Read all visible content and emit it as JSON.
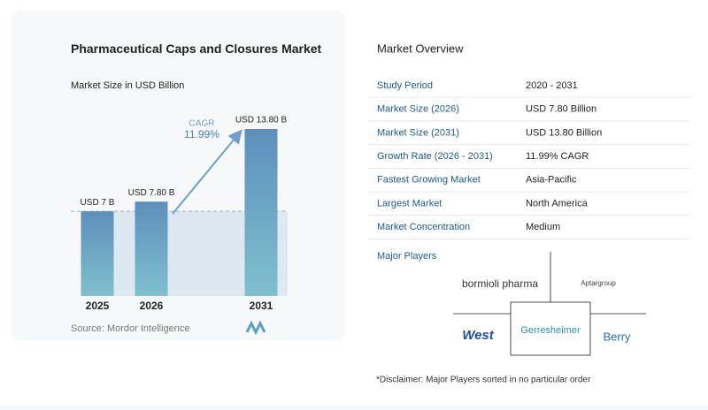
{
  "chart_data": {
    "type": "bar",
    "title": "Pharmaceutical Caps and Closures Market",
    "subtitle": "Market Size in USD Billion",
    "categories": [
      "2025",
      "2026",
      "2031"
    ],
    "values": [
      7,
      7.8,
      13.8
    ],
    "value_labels": [
      "USD 7 B",
      "USD 7.80 B",
      "USD 13.80 B"
    ],
    "annotation": {
      "label": "CAGR",
      "value": "11.99%"
    },
    "color": "#5f93bd",
    "source": "Source: Mordor Intelligence"
  },
  "overview": {
    "title": "Market Overview",
    "rows": [
      [
        "Study Period",
        "2020 - 2031"
      ],
      [
        "Market Size (2026)",
        "USD 7.80 Billion"
      ],
      [
        "Market Size (2031)",
        "USD 13.80 Billion"
      ],
      [
        "Growth Rate (2026 - 2031)",
        "11.99% CAGR"
      ],
      [
        "Fastest Growing Market",
        "Asia-Pacific"
      ],
      [
        "Largest Market",
        "North America"
      ],
      [
        "Market Concentration",
        "Medium"
      ]
    ]
  },
  "major_players": {
    "title": "Major Players",
    "logos": [
      "bormioli pharma",
      "Aptargroup",
      "West",
      "Gerresheimer",
      "Berry"
    ]
  },
  "disclaimer": "*Disclaimer: Major Players sorted in no particular order"
}
